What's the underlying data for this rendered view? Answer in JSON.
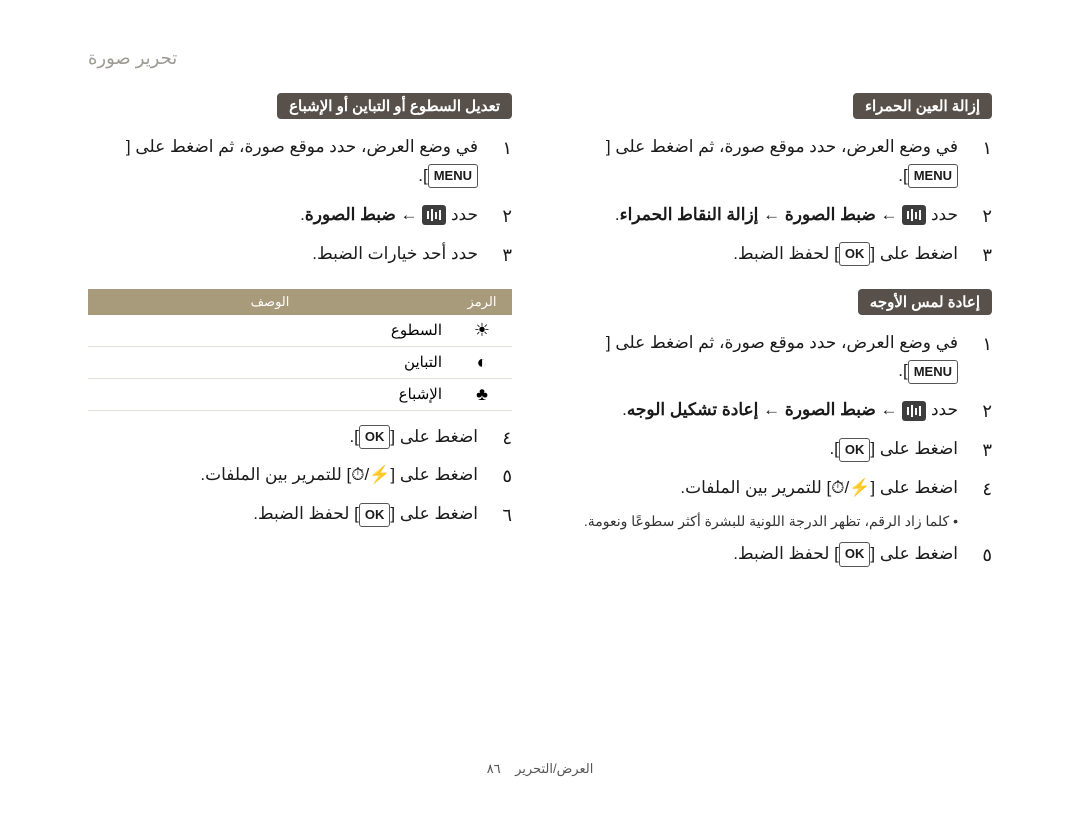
{
  "page_title": "تحرير صورة",
  "footer_section": "العرض/التحرير",
  "footer_page": "٨٦",
  "right_col": {
    "sections": [
      {
        "title": "إزالة العين الحمراء",
        "steps": [
          {
            "parts": [
              {
                "t": "في وضع العرض، حدد موقع صورة، ثم اضغط على ["
              },
              {
                "key": "MENU"
              },
              {
                "t": "]."
              }
            ]
          },
          {
            "parts": [
              {
                "t": "حدد "
              },
              {
                "icon": "equalizer"
              },
              {
                "t": " ← "
              },
              {
                "bold": "ضبط الصورة"
              },
              {
                "t": " ← "
              },
              {
                "bold": "إزالة النقاط الحمراء"
              },
              {
                "t": "."
              }
            ]
          },
          {
            "parts": [
              {
                "t": "اضغط على ["
              },
              {
                "key": "OK"
              },
              {
                "t": "] لحفظ الضبط."
              }
            ]
          }
        ]
      },
      {
        "title": "إعادة لمس الأوجه",
        "steps": [
          {
            "parts": [
              {
                "t": "في وضع العرض، حدد موقع صورة، ثم اضغط على ["
              },
              {
                "key": "MENU"
              },
              {
                "t": "]."
              }
            ]
          },
          {
            "parts": [
              {
                "t": "حدد "
              },
              {
                "icon": "equalizer"
              },
              {
                "t": " ← "
              },
              {
                "bold": "ضبط الصورة"
              },
              {
                "t": " ← "
              },
              {
                "bold": "إعادة تشكيل الوجه"
              },
              {
                "t": "."
              }
            ]
          },
          {
            "parts": [
              {
                "t": "اضغط على ["
              },
              {
                "key": "OK"
              },
              {
                "t": "]."
              }
            ]
          },
          {
            "parts": [
              {
                "t": "اضغط على ["
              },
              {
                "sym": "⚡"
              },
              {
                "t": "/"
              },
              {
                "sym": "⏱"
              },
              {
                "t": "] للتمرير بين الملفات."
              }
            ],
            "note": "كلما زاد الرقم، تظهر الدرجة اللونية للبشرة أكثر سطوعًا ونعومة."
          },
          {
            "parts": [
              {
                "t": "اضغط على ["
              },
              {
                "key": "OK"
              },
              {
                "t": "] لحفظ الضبط."
              }
            ]
          }
        ]
      }
    ]
  },
  "left_col": {
    "title": "تعديل السطوع أو التباين أو الإشباع",
    "steps_before": [
      {
        "parts": [
          {
            "t": "في وضع العرض، حدد موقع صورة، ثم اضغط على ["
          },
          {
            "key": "MENU"
          },
          {
            "t": "]."
          }
        ]
      },
      {
        "parts": [
          {
            "t": "حدد "
          },
          {
            "icon": "equalizer"
          },
          {
            "t": " ← "
          },
          {
            "bold": "ضبط الصورة"
          },
          {
            "t": "."
          }
        ]
      },
      {
        "parts": [
          {
            "t": "حدد أحد خيارات الضبط."
          }
        ]
      }
    ],
    "table": {
      "header_icon": "الرمز",
      "header_desc": "الوصف",
      "rows": [
        {
          "sym": "☀",
          "desc": "السطوع"
        },
        {
          "sym": "◐",
          "desc": "التباين"
        },
        {
          "sym": "♣",
          "desc": "الإشباع"
        }
      ]
    },
    "steps_after": [
      {
        "n": "٤",
        "parts": [
          {
            "t": "اضغط على ["
          },
          {
            "key": "OK"
          },
          {
            "t": "]."
          }
        ]
      },
      {
        "n": "٥",
        "parts": [
          {
            "t": "اضغط على ["
          },
          {
            "sym": "⚡"
          },
          {
            "t": "/"
          },
          {
            "sym": "⏱"
          },
          {
            "t": "] للتمرير بين الملفات."
          }
        ]
      },
      {
        "n": "٦",
        "parts": [
          {
            "t": "اضغط على ["
          },
          {
            "key": "OK"
          },
          {
            "t": "] لحفظ الضبط."
          }
        ]
      }
    ]
  }
}
